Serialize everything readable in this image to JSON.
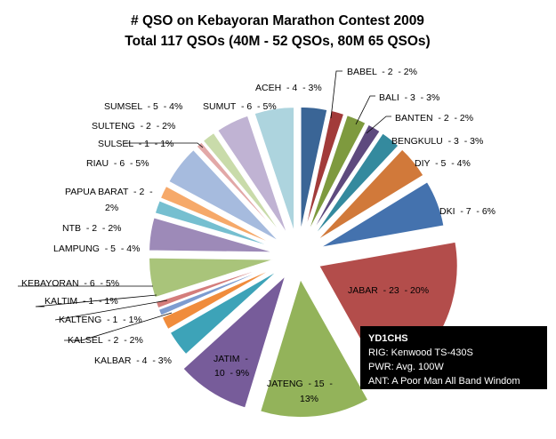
{
  "chart_data": {
    "type": "pie",
    "title": "# QSO on Kebayoran Marathon Contest 2009",
    "subtitle": "Total 117 QSOs (40M - 52 QSOs, 80M 65 QSOs)",
    "total": 117,
    "slices": [
      {
        "name": "ACEH",
        "value": 4,
        "pct": "3%",
        "label": "ACEH  - 4  - 3%",
        "color": "#3A6596"
      },
      {
        "name": "BABEL",
        "value": 2,
        "pct": "2%",
        "label": "BABEL  - 2  - 2%",
        "color": "#A23B3A"
      },
      {
        "name": "BALI",
        "value": 3,
        "pct": "3%",
        "label": "BALI  - 3  - 3%",
        "color": "#7E9A3E"
      },
      {
        "name": "BANTEN",
        "value": 2,
        "pct": "2%",
        "label": "BANTEN  - 2  - 2%",
        "color": "#5E4A7E"
      },
      {
        "name": "BENGKULU",
        "value": 3,
        "pct": "3%",
        "label": "BENGKULU  - 3  - 3%",
        "color": "#348A9E"
      },
      {
        "name": "DIY",
        "value": 5,
        "pct": "4%",
        "label": "DIY  - 5  - 4%",
        "color": "#D1793A"
      },
      {
        "name": "DKI",
        "value": 7,
        "pct": "6%",
        "label": "DKI  - 7  - 6%",
        "color": "#4472AE"
      },
      {
        "name": "JABAR",
        "value": 23,
        "pct": "20%",
        "label": "JABAR  - 23  - 20%",
        "color": "#B34D4B"
      },
      {
        "name": "JATENG",
        "value": 15,
        "pct": "13%",
        "label": "JATENG  - 15  -",
        "label2": "13%",
        "color": "#93B35A"
      },
      {
        "name": "JATIM",
        "value": 10,
        "pct": "9%",
        "label": "JATIM  -",
        "label2": "10  - 9%",
        "color": "#775C9A"
      },
      {
        "name": "KALBAR",
        "value": 4,
        "pct": "3%",
        "label": "KALBAR  - 4  - 3%",
        "color": "#3DA3B8"
      },
      {
        "name": "KALSEL",
        "value": 2,
        "pct": "2%",
        "label": "KALSEL  - 2  - 2%",
        "color": "#F08C3C"
      },
      {
        "name": "KALTENG",
        "value": 1,
        "pct": "1%",
        "label": "KALTENG  - 1  - 1%",
        "color": "#7D9CD0"
      },
      {
        "name": "KALTIM",
        "value": 1,
        "pct": "1%",
        "label": "KALTIM  - 1  - 1%",
        "color": "#D47D7B"
      },
      {
        "name": "KEBAYORAN",
        "value": 6,
        "pct": "5%",
        "label": "KEBAYORAN  - 6  - 5%",
        "color": "#A9C47A"
      },
      {
        "name": "LAMPUNG",
        "value": 5,
        "pct": "4%",
        "label": "LAMPUNG  - 5  - 4%",
        "color": "#9D8AB8"
      },
      {
        "name": "NTB",
        "value": 2,
        "pct": "2%",
        "label": "NTB  - 2  - 2%",
        "color": "#76BFD0"
      },
      {
        "name": "PAPUA BARAT",
        "value": 2,
        "pct": "2%",
        "label": "PAPUA BARAT  - 2  -",
        "label2": "2%",
        "color": "#F6A96A"
      },
      {
        "name": "RIAU",
        "value": 6,
        "pct": "5%",
        "label": "RIAU  - 6  - 5%",
        "color": "#A6BBDE"
      },
      {
        "name": "SULSEL",
        "value": 1,
        "pct": "1%",
        "label": "SULSEL  - 1  - 1%",
        "color": "#E2A8A7"
      },
      {
        "name": "SULTENG",
        "value": 2,
        "pct": "2%",
        "label": "SULTENG  - 2  - 2%",
        "color": "#C9DBAA"
      },
      {
        "name": "SUMSEL",
        "value": 5,
        "pct": "4%",
        "label": "SUMSEL  - 5  - 4%",
        "color": "#C0B3D3"
      },
      {
        "name": "SUMUT",
        "value": 6,
        "pct": "5%",
        "label": "SUMUT  - 6  - 5%",
        "color": "#ADD4DE"
      }
    ]
  },
  "infobox": {
    "callsign": "YD1CHS",
    "rig": "RIG: Kenwood TS-430S",
    "pwr": "PWR: Avg. 100W",
    "ant": "ANT: A Poor Man All Band Windom"
  }
}
